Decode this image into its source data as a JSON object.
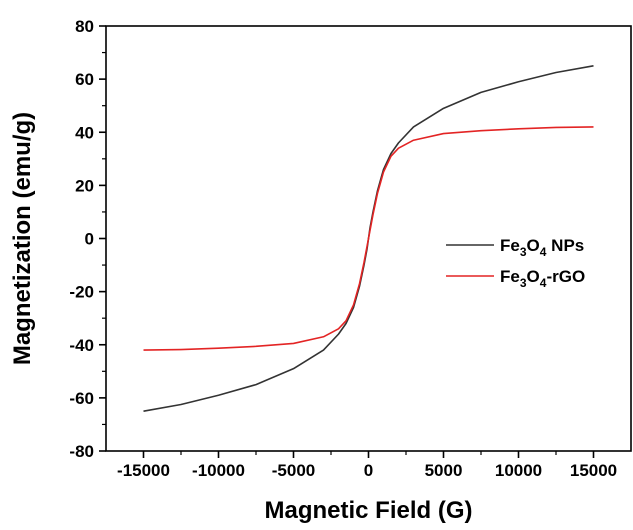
{
  "chart_data": {
    "type": "line",
    "xlabel": "Magnetic Field (G)",
    "ylabel": "Magnetization (emu/g)",
    "xlim": [
      -17500,
      17500
    ],
    "ylim": [
      -80,
      80
    ],
    "xticks": [
      -15000,
      -10000,
      -5000,
      0,
      5000,
      10000,
      15000
    ],
    "yticks": [
      -80,
      -60,
      -40,
      -20,
      0,
      20,
      40,
      60,
      80
    ],
    "legend_position": "right",
    "series": [
      {
        "name": "Fe3O4 NPs",
        "label_parts": [
          {
            "t": "Fe"
          },
          {
            "t": "3",
            "sub": true
          },
          {
            "t": "O"
          },
          {
            "t": "4",
            "sub": true
          },
          {
            "t": " NPs"
          }
        ],
        "color": "#333333",
        "x": [
          -15000,
          -12500,
          -10000,
          -7500,
          -5000,
          -3000,
          -2000,
          -1500,
          -1000,
          -600,
          -300,
          -100,
          0,
          100,
          300,
          600,
          1000,
          1500,
          2000,
          3000,
          5000,
          7500,
          10000,
          12500,
          15000
        ],
        "y": [
          -65,
          -62.5,
          -59,
          -55,
          -49,
          -42,
          -36,
          -32,
          -26,
          -18,
          -10,
          -4,
          0,
          4,
          10,
          18,
          26,
          32,
          36,
          42,
          49,
          55,
          59,
          62.5,
          65
        ]
      },
      {
        "name": "Fe3O4-rGO",
        "label_parts": [
          {
            "t": "Fe"
          },
          {
            "t": "3",
            "sub": true
          },
          {
            "t": "O"
          },
          {
            "t": "4",
            "sub": true
          },
          {
            "t": "-rGO"
          }
        ],
        "color": "#e32424",
        "x": [
          -15000,
          -12500,
          -10000,
          -7500,
          -5000,
          -3000,
          -2000,
          -1500,
          -1000,
          -600,
          -300,
          -100,
          0,
          100,
          300,
          600,
          1000,
          1500,
          2000,
          3000,
          5000,
          7500,
          10000,
          12500,
          15000
        ],
        "y": [
          -42,
          -41.8,
          -41.3,
          -40.6,
          -39.5,
          -37,
          -34,
          -31,
          -25,
          -17,
          -9,
          -3,
          0,
          3,
          9,
          17,
          25,
          31,
          34,
          37,
          39.5,
          40.6,
          41.3,
          41.8,
          42
        ]
      }
    ]
  }
}
